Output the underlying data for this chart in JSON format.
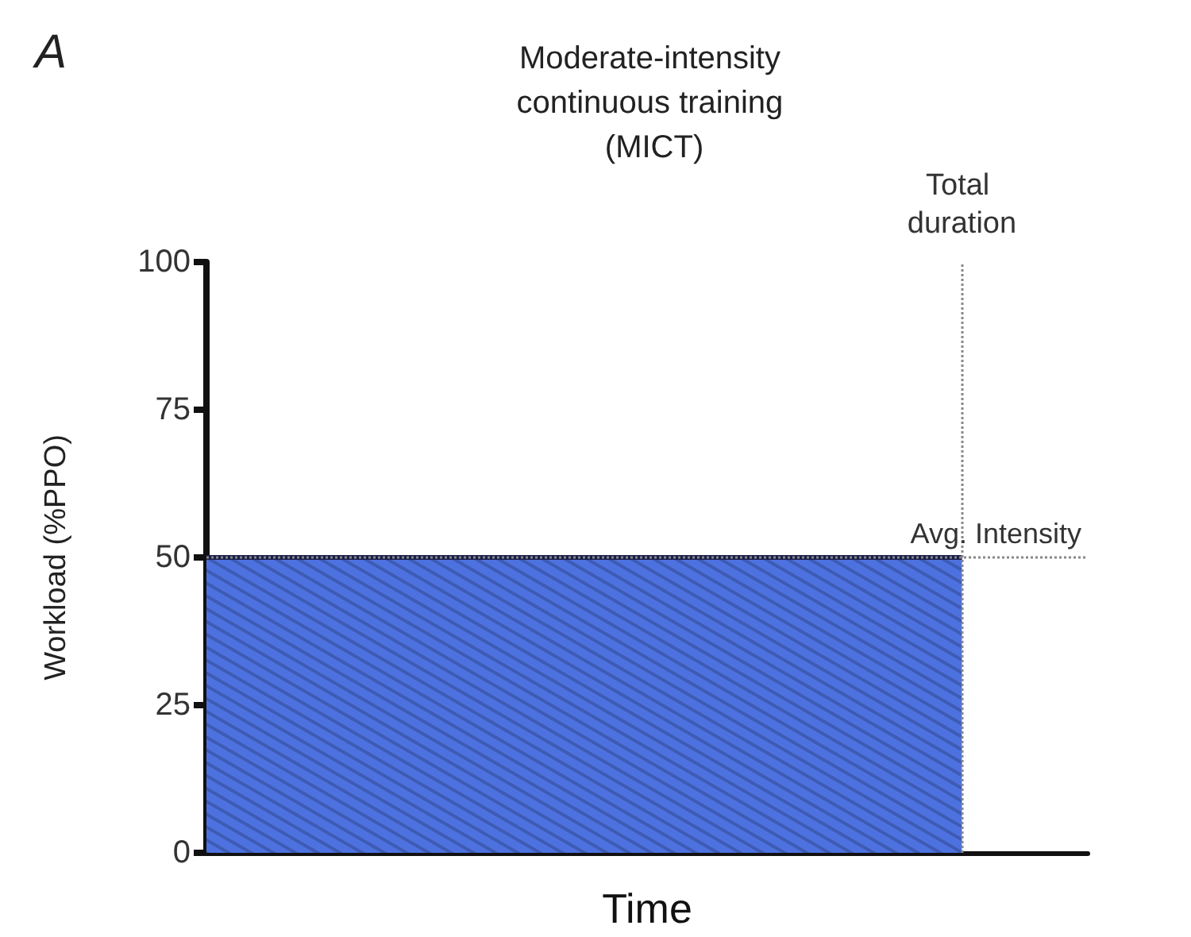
{
  "chart_data": {
    "type": "area",
    "title": "Moderate-intensity continuous training (MICT)",
    "xlabel": "Time",
    "ylabel": "Workload (%PPO)",
    "categories": [
      null,
      null,
      null,
      null,
      null,
      null,
      null,
      null
    ],
    "series": [
      {
        "color": "#4d72e0",
        "values": [
          50,
          50,
          50,
          50,
          50,
          50,
          50,
          null
        ]
      }
    ],
    "ylim": [
      0,
      100
    ],
    "yticks": [
      0,
      25,
      50,
      75,
      100
    ],
    "grid": false,
    "marker": "none",
    "ref_lines": [
      {
        "axis": "x",
        "label": "Total duration",
        "line_style": "dotted",
        "color": "#888888"
      },
      {
        "axis": "y",
        "value": 50,
        "label": "Avg. Intensity",
        "line_style": "dotted",
        "color": "#888888"
      }
    ],
    "annotations": [
      "A"
    ]
  }
}
